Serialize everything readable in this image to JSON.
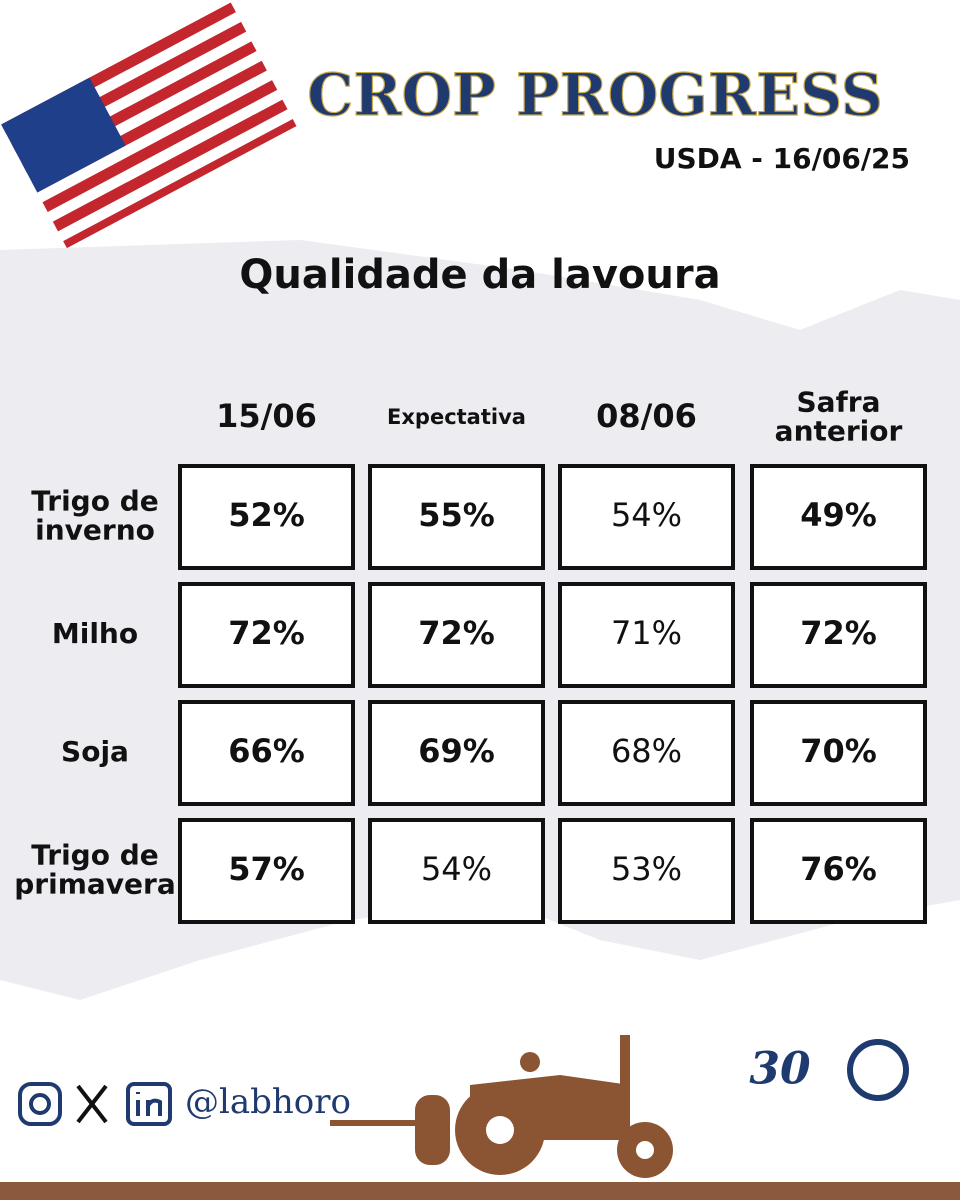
{
  "header": {
    "title": "CROP PROGRESS",
    "subtitle": "USDA - 16/06/25"
  },
  "table": {
    "title": "Qualidade da lavoura",
    "columns": [
      [
        "15/06"
      ],
      [
        "Expectativa"
      ],
      [
        "08/06"
      ],
      [
        "Safra",
        "anterior"
      ]
    ],
    "rows": [
      {
        "label": [
          "Trigo de",
          "inverno"
        ],
        "cells": [
          "52%",
          "55%",
          "54%",
          "49%"
        ]
      },
      {
        "label": [
          "Milho"
        ],
        "cells": [
          "72%",
          "72%",
          "71%",
          "72%"
        ]
      },
      {
        "label": [
          "Soja"
        ],
        "cells": [
          "66%",
          "69%",
          "68%",
          "70%"
        ]
      },
      {
        "label": [
          "Trigo de",
          "primavera"
        ],
        "cells": [
          "57%",
          "54%",
          "53%",
          "76%"
        ]
      }
    ]
  },
  "footer": {
    "handle": "@labhoro",
    "logo_number": "30"
  }
}
